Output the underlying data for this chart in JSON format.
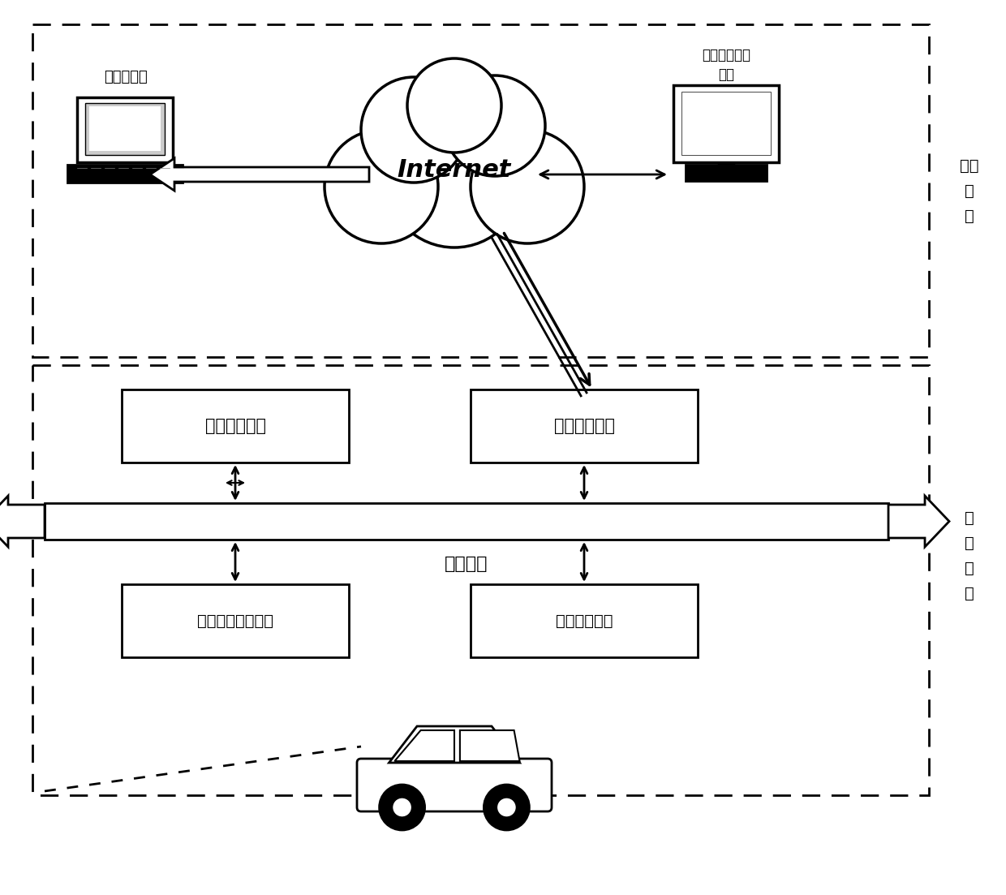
{
  "bg_color": "#ffffff",
  "remote_label": "远程\n部\n分",
  "vehicle_label": "车\n载\n部\n分",
  "log_server_label": "日志服务器",
  "internet_label": "Internet",
  "venv_ctrl_label": "虚拟环境控制\n终端",
  "autopilot_label": "无人驾驶系统",
  "netcomm_label": "网络通信系统",
  "sysbus_label": "系统总线",
  "venv_mgr_label": "虚拟环境管理系统",
  "data_rec_label": "数据记录系统"
}
